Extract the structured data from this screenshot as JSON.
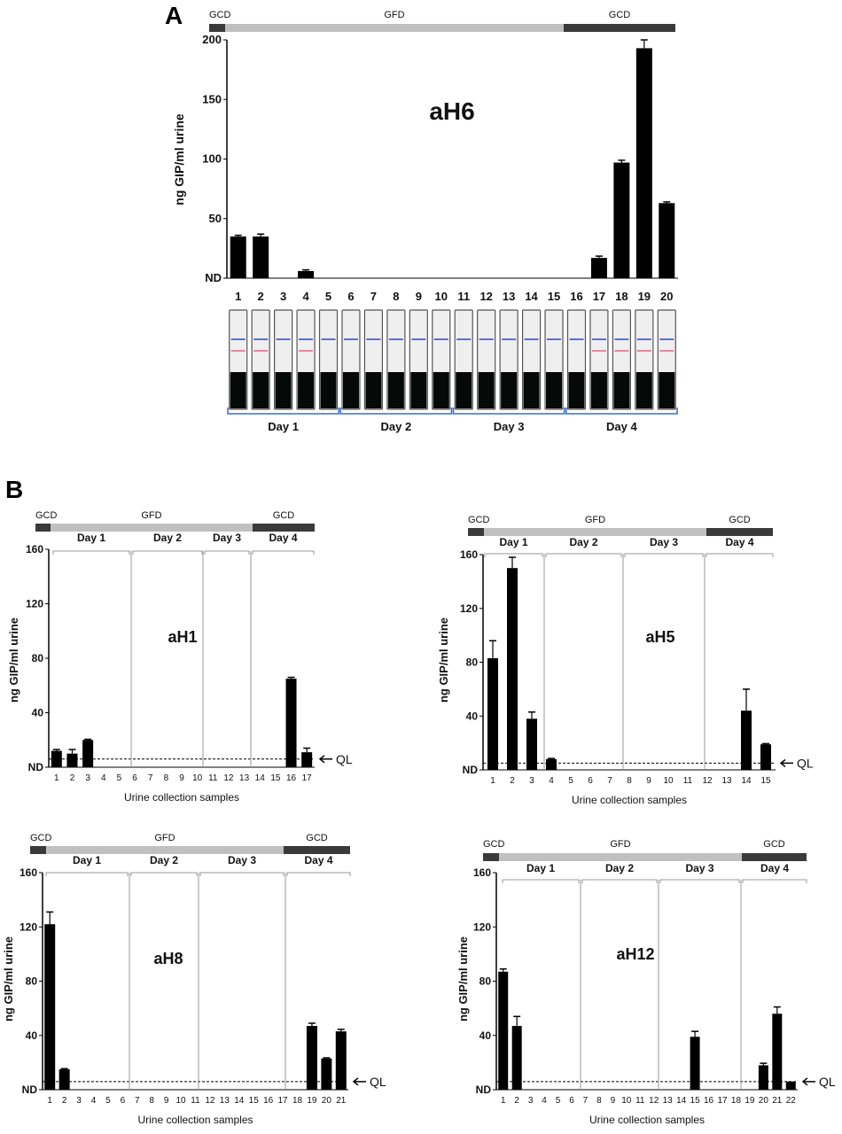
{
  "panel_letters": [
    "A",
    "B"
  ],
  "diet_labels": {
    "gcd": "GCD",
    "gfd": "GFD"
  },
  "colors": {
    "bar": "#000000",
    "gcd": "#3a3a3a",
    "gfd": "#c0c0c0",
    "bracket": "#9a9a9a",
    "strip_blue": "#5a6fe0",
    "strip_red": "#e08aa0"
  },
  "ql_label": "QL",
  "xlabel_b": "Urine collection samples",
  "chart_data": [
    {
      "id": "aH6",
      "type": "bar",
      "title": "aH6",
      "ylabel": "ng GIP/ml urine",
      "yticks": [
        "ND",
        "50",
        "100",
        "150",
        "200"
      ],
      "ylim": [
        0,
        200
      ],
      "categories": [
        "1",
        "2",
        "3",
        "4",
        "5",
        "6",
        "7",
        "8",
        "9",
        "10",
        "11",
        "12",
        "13",
        "14",
        "15",
        "16",
        "17",
        "18",
        "19",
        "20"
      ],
      "values": [
        35,
        35,
        0,
        6,
        0,
        0,
        0,
        0,
        0,
        0,
        0,
        0,
        0,
        0,
        0,
        0,
        17,
        97,
        193,
        63
      ],
      "errors": [
        1,
        2,
        0,
        1,
        0,
        0,
        0,
        0,
        0,
        0,
        0,
        0,
        0,
        0,
        0,
        0,
        1.5,
        2,
        7,
        1
      ],
      "day_labels": [
        "Day 1",
        "Day 2",
        "Day 3",
        "Day 4"
      ],
      "strip_colors": [
        "#3a3a3a",
        "#3a3a3a",
        "#3a3a3a",
        "#3a3a3a",
        "#3a3a3a"
      ]
    },
    {
      "id": "aH1",
      "type": "bar",
      "title": "aH1",
      "ylabel": "ng GIP/ml urine",
      "yticks": [
        "ND",
        "40",
        "80",
        "120",
        "160"
      ],
      "ylim": [
        0,
        160
      ],
      "categories": [
        "1",
        "2",
        "3",
        "4",
        "5",
        "6",
        "7",
        "8",
        "9",
        "10",
        "11",
        "12",
        "13",
        "14",
        "15",
        "16",
        "17"
      ],
      "values": [
        12,
        10,
        20,
        0,
        0,
        0,
        0,
        0,
        0,
        0,
        0,
        0,
        0,
        0,
        0,
        65,
        11
      ],
      "errors": [
        1,
        3,
        0.5,
        0,
        0,
        0,
        0,
        0,
        0,
        0,
        0,
        0,
        0,
        0,
        0,
        1,
        3
      ],
      "ql": 6,
      "day_labels": [
        "Day 1",
        "Day 2",
        "Day 3",
        "Day 4"
      ]
    },
    {
      "id": "aH5",
      "type": "bar",
      "title": "aH5",
      "ylabel": "ng GIP/ml urine",
      "yticks": [
        "ND",
        "40",
        "80",
        "120",
        "160"
      ],
      "ylim": [
        0,
        160
      ],
      "categories": [
        "1",
        "2",
        "3",
        "4",
        "5",
        "6",
        "7",
        "8",
        "9",
        "10",
        "11",
        "12",
        "13",
        "14",
        "15"
      ],
      "values": [
        83,
        150,
        38,
        8,
        0,
        0,
        0,
        0,
        0,
        0,
        0,
        0,
        0,
        44,
        19
      ],
      "errors": [
        13,
        8,
        5,
        0.5,
        0,
        0,
        0,
        0,
        0,
        0,
        0,
        0,
        0,
        16,
        0.5
      ],
      "ql": 5,
      "day_labels": [
        "Day 1",
        "Day 2",
        "Day 3",
        "Day 4"
      ]
    },
    {
      "id": "aH8",
      "type": "bar",
      "title": "aH8",
      "ylabel": "ng GIP/ml urine",
      "yticks": [
        "ND",
        "40",
        "80",
        "120",
        "160"
      ],
      "ylim": [
        0,
        160
      ],
      "categories": [
        "1",
        "2",
        "3",
        "4",
        "5",
        "6",
        "7",
        "8",
        "9",
        "10",
        "11",
        "12",
        "13",
        "14",
        "15",
        "16",
        "17",
        "18",
        "19",
        "20",
        "21"
      ],
      "values": [
        122,
        15,
        0,
        0,
        0,
        0,
        0,
        0,
        0,
        0,
        0,
        0,
        0,
        0,
        0,
        0,
        0,
        0,
        47,
        23,
        43
      ],
      "errors": [
        9,
        0.5,
        0,
        0,
        0,
        0,
        0,
        0,
        0,
        0,
        0,
        0,
        0,
        0,
        0,
        0,
        0,
        0,
        2,
        0.5,
        1.5
      ],
      "ql": 6,
      "day_labels": [
        "Day 1",
        "Day 2",
        "Day 3",
        "Day 4"
      ]
    },
    {
      "id": "aH12",
      "type": "bar",
      "title": "aH12",
      "ylabel": "ng GIP/ml urine",
      "yticks": [
        "ND",
        "40",
        "80",
        "120",
        "160"
      ],
      "ylim": [
        0,
        160
      ],
      "categories": [
        "1",
        "2",
        "3",
        "4",
        "5",
        "6",
        "7",
        "8",
        "9",
        "10",
        "11",
        "12",
        "13",
        "14",
        "15",
        "16",
        "17",
        "18",
        "19",
        "20",
        "21",
        "22"
      ],
      "values": [
        87,
        47,
        0,
        0,
        0,
        0,
        0,
        0,
        0,
        0,
        0,
        0,
        0,
        0,
        39,
        0,
        0,
        0,
        0,
        18,
        56,
        6
      ],
      "errors": [
        2,
        7,
        0,
        0,
        0,
        0,
        0,
        0,
        0,
        0,
        0,
        0,
        0,
        0,
        4,
        0,
        0,
        0,
        0,
        1.5,
        5,
        0
      ],
      "ql": 6,
      "day_labels": [
        "Day 1",
        "Day 2",
        "Day 3",
        "Day 4"
      ]
    }
  ]
}
